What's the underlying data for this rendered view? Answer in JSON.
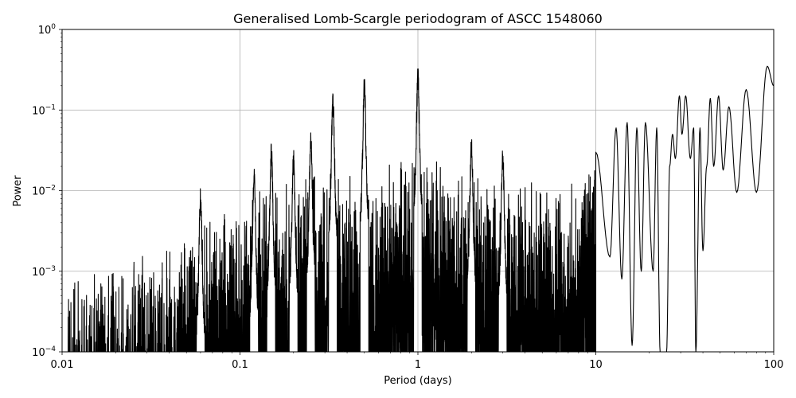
{
  "chart_data": {
    "type": "line",
    "title": "Generalised Lomb-Scargle periodogram of ASCC 1548060",
    "xlabel": "Period (days)",
    "ylabel": "Power",
    "xscale": "log",
    "yscale": "log",
    "xlim": [
      0.01,
      100
    ],
    "ylim": [
      0.0001,
      1
    ],
    "grid": true,
    "line_color": "#000000",
    "x_ticks": [
      {
        "value": 0.01,
        "label": "0.01"
      },
      {
        "value": 0.1,
        "label": "0.1"
      },
      {
        "value": 1,
        "label": "1"
      },
      {
        "value": 10,
        "label": "10"
      },
      {
        "value": 100,
        "label": "100"
      }
    ],
    "y_ticks": [
      {
        "value": 0.0001,
        "base": "10",
        "exp": "−4"
      },
      {
        "value": 0.001,
        "base": "10",
        "exp": "−3"
      },
      {
        "value": 0.01,
        "base": "10",
        "exp": "−2"
      },
      {
        "value": 0.1,
        "base": "10",
        "exp": "−1"
      },
      {
        "value": 1,
        "base": "10",
        "exp": "0"
      }
    ],
    "envelope": [
      {
        "period": 0.01,
        "power": 0.0004
      },
      {
        "period": 0.012,
        "power": 0.0012
      },
      {
        "period": 0.02,
        "power": 0.0014
      },
      {
        "period": 0.03,
        "power": 0.0018
      },
      {
        "period": 0.045,
        "power": 0.0025
      },
      {
        "period": 0.06,
        "power": 0.005
      },
      {
        "period": 0.08,
        "power": 0.006
      },
      {
        "period": 0.1,
        "power": 0.008
      },
      {
        "period": 0.15,
        "power": 0.012
      },
      {
        "period": 0.2,
        "power": 0.018
      },
      {
        "period": 0.25,
        "power": 0.02
      },
      {
        "period": 0.4,
        "power": 0.02
      },
      {
        "period": 0.6,
        "power": 0.02
      },
      {
        "period": 0.8,
        "power": 0.03
      },
      {
        "period": 1.5,
        "power": 0.025
      },
      {
        "period": 2,
        "power": 0.02
      },
      {
        "period": 3,
        "power": 0.015
      },
      {
        "period": 4,
        "power": 0.015
      },
      {
        "period": 6,
        "power": 0.012
      },
      {
        "period": 10,
        "power": 0.03
      }
    ],
    "peaks": [
      {
        "period": 0.06,
        "power": 0.011
      },
      {
        "period": 0.12,
        "power": 0.02
      },
      {
        "period": 0.15,
        "power": 0.04
      },
      {
        "period": 0.2,
        "power": 0.035
      },
      {
        "period": 0.25,
        "power": 0.06
      },
      {
        "period": 0.333,
        "power": 0.18
      },
      {
        "period": 0.5,
        "power": 0.27
      },
      {
        "period": 1.0,
        "power": 0.35
      },
      {
        "period": 2.0,
        "power": 0.05
      },
      {
        "period": 3.0,
        "power": 0.035
      }
    ],
    "long_period_curve": [
      {
        "period": 10,
        "power": 0.03
      },
      {
        "period": 12,
        "power": 0.0015
      },
      {
        "period": 13,
        "power": 0.06
      },
      {
        "period": 14,
        "power": 0.0008
      },
      {
        "period": 15,
        "power": 0.07
      },
      {
        "period": 16,
        "power": 0.00012
      },
      {
        "period": 17,
        "power": 0.06
      },
      {
        "period": 18,
        "power": 0.001
      },
      {
        "period": 19,
        "power": 0.07
      },
      {
        "period": 21,
        "power": 0.001
      },
      {
        "period": 22,
        "power": 0.06
      },
      {
        "period": 23,
        "power": 0.0001
      },
      {
        "period": 25,
        "power": 0.0001
      },
      {
        "period": 26,
        "power": 0.02
      },
      {
        "period": 27,
        "power": 0.05
      },
      {
        "period": 28,
        "power": 0.025
      },
      {
        "period": 29.5,
        "power": 0.15
      },
      {
        "period": 30.5,
        "power": 0.05
      },
      {
        "period": 32,
        "power": 0.15
      },
      {
        "period": 34,
        "power": 0.025
      },
      {
        "period": 35.5,
        "power": 0.06
      },
      {
        "period": 36.5,
        "power": 0.0001
      },
      {
        "period": 38.5,
        "power": 0.06
      },
      {
        "period": 40,
        "power": 0.0018
      },
      {
        "period": 42,
        "power": 0.02
      },
      {
        "period": 44,
        "power": 0.14
      },
      {
        "period": 46,
        "power": 0.02
      },
      {
        "period": 49,
        "power": 0.15
      },
      {
        "period": 52,
        "power": 0.018
      },
      {
        "period": 56,
        "power": 0.11
      },
      {
        "period": 62,
        "power": 0.0095
      },
      {
        "period": 70,
        "power": 0.18
      },
      {
        "period": 80,
        "power": 0.0095
      },
      {
        "period": 92,
        "power": 0.35
      },
      {
        "period": 100,
        "power": 0.2
      }
    ]
  }
}
